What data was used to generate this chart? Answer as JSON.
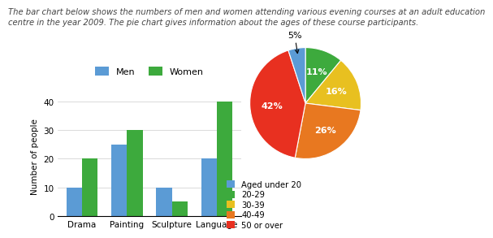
{
  "title_text": "The bar chart below shows the numbers of men and women attending various evening courses at an adult education\ncentre in the year 2009. The pie chart gives information about the ages of these course participants.",
  "bar_categories": [
    "Drama",
    "Painting",
    "Sculpture",
    "Language"
  ],
  "men_values": [
    10,
    25,
    10,
    20
  ],
  "women_values": [
    20,
    30,
    5,
    40
  ],
  "men_color": "#5B9BD5",
  "women_color": "#3DAA3D",
  "bar_ylabel": "Number of people",
  "bar_ylim": [
    0,
    42
  ],
  "bar_yticks": [
    0,
    10,
    20,
    30,
    40
  ],
  "pie_values": [
    11,
    16,
    26,
    42,
    5
  ],
  "pie_pct_labels": [
    "11%",
    "16%",
    "26%",
    "42%",
    "5%"
  ],
  "pie_colors": [
    "#3DAA3D",
    "#E8C020",
    "#E87820",
    "#E83020",
    "#5B9BD5"
  ],
  "pie_legend_labels": [
    "Aged under 20",
    "20-29",
    "30-39",
    "40-49",
    "50 or over"
  ],
  "pie_legend_colors": [
    "#5B9BD5",
    "#3DAA3D",
    "#E8C020",
    "#E87820",
    "#E83020"
  ],
  "background_color": "#FFFFFF",
  "title_fontsize": 7.2,
  "label_fontsize": 7.5,
  "tick_fontsize": 7.5
}
